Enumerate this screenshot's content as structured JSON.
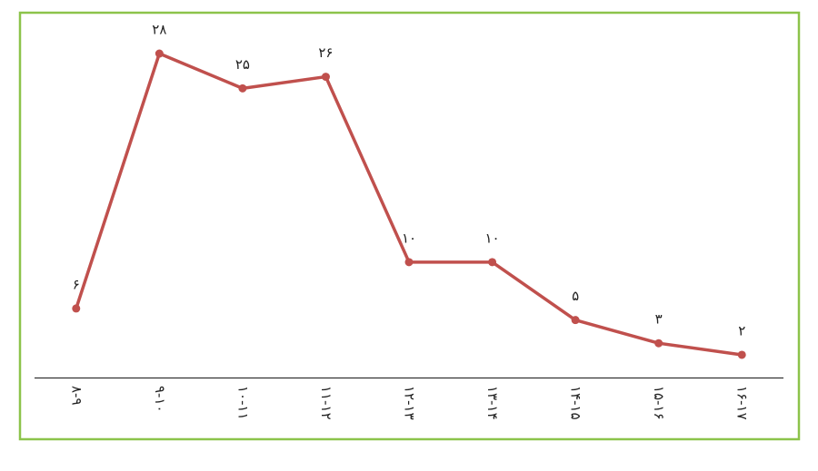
{
  "chart_data": {
    "type": "line",
    "categories": [
      "۸-۹",
      "۹-۱۰",
      "۱۰-۱۱",
      "۱۱-۱۲",
      "۱۲-۱۳",
      "۱۳-۱۴",
      "۱۴-۱۵",
      "۱۵-۱۶",
      "۱۶-۱۷"
    ],
    "values": [
      6,
      28,
      25,
      26,
      10,
      10,
      5,
      3,
      2
    ],
    "value_labels": [
      "۶",
      "۲۸",
      "۲۵",
      "۲۶",
      "۱۰",
      "۱۰",
      "۵",
      "۳",
      "۲"
    ],
    "color": "#c0504d",
    "ylim": [
      0,
      30
    ]
  }
}
